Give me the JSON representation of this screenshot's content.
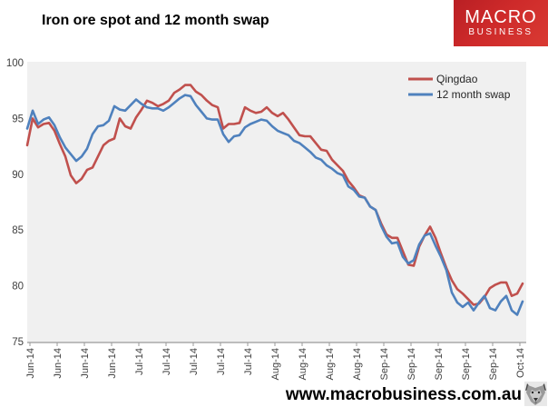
{
  "logo": {
    "line1": "MACRO",
    "line2": "BUSINESS"
  },
  "watermark": {
    "text": "www.macrobusiness.com.au"
  },
  "chart_data": {
    "type": "line",
    "title": "Iron ore spot and 12 month swap",
    "ylim": [
      75,
      100
    ],
    "y_ticks": [
      100,
      95,
      90,
      85,
      80,
      75
    ],
    "grid": false,
    "plot_bg": "#F0F0F0",
    "axis_color": "#9a9a9a",
    "label_color": "#3f3f3f",
    "legend_position": "top-right-inside",
    "x_tick_labels": [
      "Jun-14",
      "Jun-14",
      "Jun-14",
      "Jun-14",
      "Jul-14",
      "Jul-14",
      "Jul-14",
      "Jul-14",
      "Jul-14",
      "Aug-14",
      "Aug-14",
      "Aug-14",
      "Aug-14",
      "Sep-14",
      "Sep-14",
      "Sep-14",
      "Sep-14",
      "Sep-14",
      "Oct-14"
    ],
    "series": [
      {
        "name": "Qingdao",
        "color": "#C0504D",
        "values": [
          92.6,
          95.0,
          94.2,
          94.5,
          94.6,
          93.9,
          92.7,
          91.6,
          89.9,
          89.2,
          89.6,
          90.4,
          90.6,
          91.6,
          92.6,
          93.0,
          93.2,
          95.0,
          94.3,
          94.1,
          95.1,
          95.8,
          96.6,
          96.4,
          96.1,
          96.3,
          96.6,
          97.3,
          97.6,
          98.0,
          98.0,
          97.4,
          97.1,
          96.6,
          96.2,
          96.0,
          94.1,
          94.5,
          94.5,
          94.6,
          96.0,
          95.7,
          95.5,
          95.6,
          96.0,
          95.5,
          95.2,
          95.5,
          94.9,
          94.2,
          93.5,
          93.4,
          93.4,
          92.8,
          92.2,
          92.1,
          91.3,
          90.8,
          90.3,
          89.4,
          88.8,
          88.1,
          87.9,
          87.1,
          86.8,
          85.6,
          84.6,
          84.3,
          84.3,
          83.1,
          81.9,
          81.8,
          83.5,
          84.5,
          85.3,
          84.3,
          82.9,
          81.6,
          80.5,
          79.7,
          79.3,
          78.8,
          78.3,
          78.4,
          79.0,
          79.8,
          80.1,
          80.3,
          80.3,
          79.1,
          79.3,
          80.2
        ]
      },
      {
        "name": "12 month swap",
        "color": "#4F81BD",
        "values": [
          94.1,
          95.7,
          94.5,
          94.9,
          95.1,
          94.4,
          93.3,
          92.4,
          91.8,
          91.2,
          91.6,
          92.3,
          93.6,
          94.3,
          94.4,
          94.8,
          96.1,
          95.8,
          95.7,
          96.2,
          96.7,
          96.3,
          96.0,
          95.9,
          95.9,
          95.7,
          96.0,
          96.4,
          96.8,
          97.1,
          97.0,
          96.2,
          95.6,
          95.0,
          94.9,
          94.9,
          93.6,
          92.9,
          93.4,
          93.5,
          94.2,
          94.5,
          94.7,
          94.9,
          94.8,
          94.3,
          93.9,
          93.7,
          93.5,
          93.0,
          92.8,
          92.4,
          92.0,
          91.5,
          91.3,
          90.8,
          90.5,
          90.1,
          89.9,
          88.9,
          88.6,
          88.0,
          87.9,
          87.1,
          86.8,
          85.4,
          84.4,
          83.8,
          83.9,
          82.6,
          82.0,
          82.3,
          83.7,
          84.5,
          84.7,
          83.6,
          82.6,
          81.4,
          79.4,
          78.5,
          78.1,
          78.5,
          77.8,
          78.5,
          79.1,
          78.0,
          77.8,
          78.6,
          79.1,
          77.8,
          77.4,
          78.6
        ]
      }
    ]
  }
}
